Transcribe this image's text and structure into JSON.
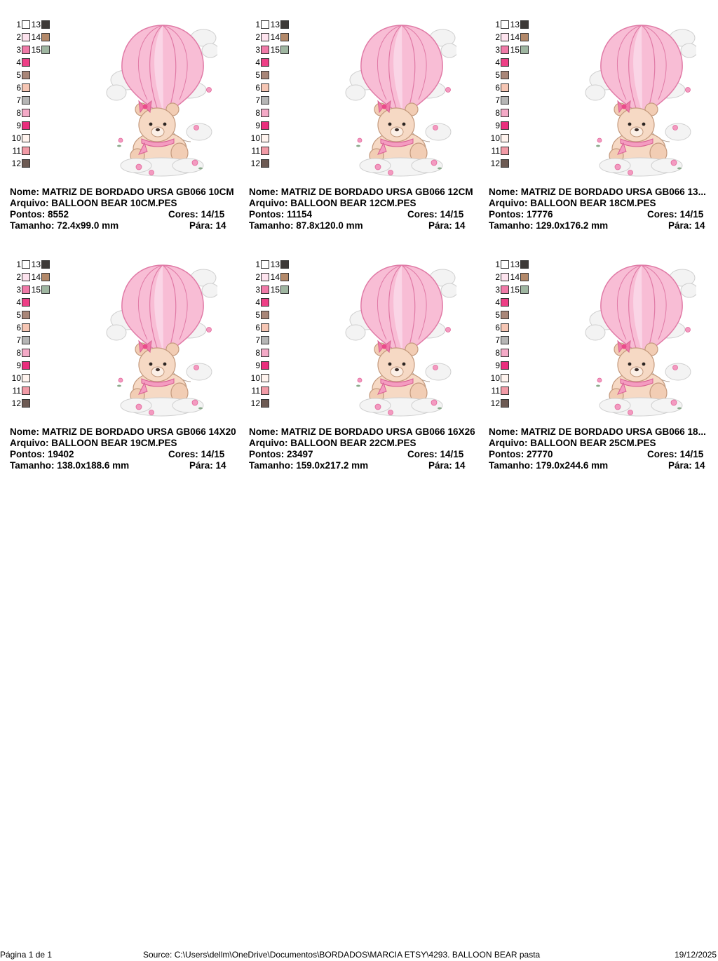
{
  "designs": [
    {
      "nome_label": "Nome:",
      "nome": "MATRIZ DE BORDADO URSA GB066 10CM",
      "arquivo_label": "Arquivo:",
      "arquivo": "BALLOON BEAR 10CM.PES",
      "pontos_label": "Pontos:",
      "pontos": "8552",
      "cores_label": "Cores:",
      "cores": "14/15",
      "tamanho_label": "Tamanho:",
      "tamanho": "72.4x99.0 mm",
      "para_label": "Pára:",
      "para": "14"
    },
    {
      "nome_label": "Nome:",
      "nome": "MATRIZ DE BORDADO URSA GB066 12CM",
      "arquivo_label": "Arquivo:",
      "arquivo": "BALLOON BEAR 12CM.PES",
      "pontos_label": "Pontos:",
      "pontos": "11154",
      "cores_label": "Cores:",
      "cores": "14/15",
      "tamanho_label": "Tamanho:",
      "tamanho": "87.8x120.0 mm",
      "para_label": "Pára:",
      "para": "14"
    },
    {
      "nome_label": "Nome:",
      "nome": "MATRIZ DE BORDADO URSA GB066 13...",
      "arquivo_label": "Arquivo:",
      "arquivo": "BALLOON BEAR 18CM.PES",
      "pontos_label": "Pontos:",
      "pontos": "17776",
      "cores_label": "Cores:",
      "cores": "14/15",
      "tamanho_label": "Tamanho:",
      "tamanho": "129.0x176.2 mm",
      "para_label": "Pára:",
      "para": "14"
    },
    {
      "nome_label": "Nome:",
      "nome": "MATRIZ DE BORDADO URSA GB066 14X20",
      "arquivo_label": "Arquivo:",
      "arquivo": "BALLOON BEAR 19CM.PES",
      "pontos_label": "Pontos:",
      "pontos": "19402",
      "cores_label": "Cores:",
      "cores": "14/15",
      "tamanho_label": "Tamanho:",
      "tamanho": "138.0x188.6 mm",
      "para_label": "Pára:",
      "para": "14"
    },
    {
      "nome_label": "Nome:",
      "nome": "MATRIZ DE BORDADO URSA GB066 16X26",
      "arquivo_label": "Arquivo:",
      "arquivo": "BALLOON BEAR 22CM.PES",
      "pontos_label": "Pontos:",
      "pontos": "23497",
      "cores_label": "Cores:",
      "cores": "14/15",
      "tamanho_label": "Tamanho:",
      "tamanho": "159.0x217.2 mm",
      "para_label": "Pára:",
      "para": "14"
    },
    {
      "nome_label": "Nome:",
      "nome": "MATRIZ DE BORDADO URSA GB066 18...",
      "arquivo_label": "Arquivo:",
      "arquivo": "BALLOON BEAR 25CM.PES",
      "pontos_label": "Pontos:",
      "pontos": "27770",
      "cores_label": "Cores:",
      "cores": "14/15",
      "tamanho_label": "Tamanho:",
      "tamanho": "179.0x244.6 mm",
      "para_label": "Pára:",
      "para": "14"
    }
  ],
  "threads": [
    {
      "n": "1",
      "color": "#ffffff"
    },
    {
      "n": "2",
      "color": "#fde3ee"
    },
    {
      "n": "3",
      "color": "#f07aa8"
    },
    {
      "n": "4",
      "color": "#ee3f86"
    },
    {
      "n": "5",
      "color": "#a98678"
    },
    {
      "n": "6",
      "color": "#f6c6b4"
    },
    {
      "n": "7",
      "color": "#b5b5b5"
    },
    {
      "n": "8",
      "color": "#f4a9c6"
    },
    {
      "n": "9",
      "color": "#ea2e7d"
    },
    {
      "n": "10",
      "color": "#fff3ee"
    },
    {
      "n": "11",
      "color": "#f19aa6"
    },
    {
      "n": "12",
      "color": "#6d5a53"
    },
    {
      "n": "13",
      "color": "#3d3a38"
    },
    {
      "n": "14",
      "color": "#b3896a"
    },
    {
      "n": "15",
      "color": "#9fb6a1"
    }
  ],
  "footer": {
    "page": "Página 1 de 1",
    "source": "Source: C:\\Users\\dellm\\OneDrive\\Documentos\\BORDADOS\\MARCIA ETSY\\4293. BALLOON BEAR pasta",
    "date": "19/12/2025"
  }
}
